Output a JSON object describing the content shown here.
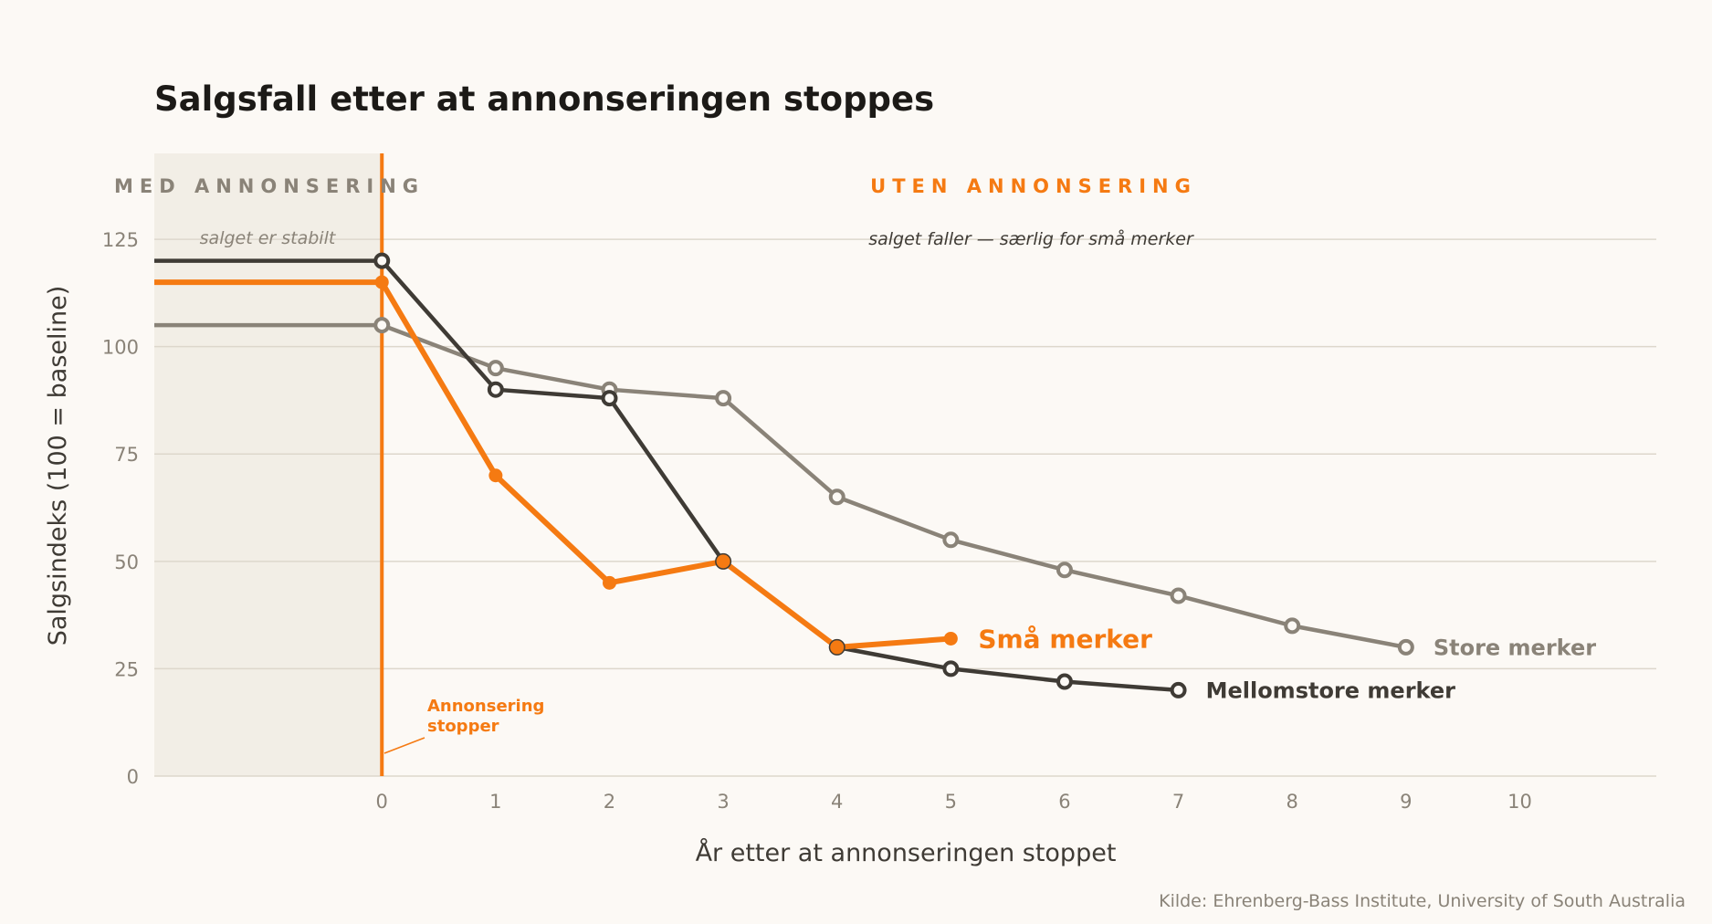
{
  "chart_data": {
    "type": "line",
    "title": "Salgsfall etter at annonseringen stoppes",
    "xlabel": "År etter at annonseringen stoppet",
    "ylabel": "Salgsindeks (100 = baseline)",
    "xlim": [
      -2,
      11.2
    ],
    "ylim": [
      0,
      145
    ],
    "x_ticks": [
      0,
      1,
      2,
      3,
      4,
      5,
      6,
      7,
      8,
      9,
      10
    ],
    "y_ticks": [
      0,
      25,
      50,
      75,
      100,
      125
    ],
    "grid": "horizontal",
    "regions": [
      {
        "label": "MED ANNONSERING",
        "note": "salget er stabilt",
        "x_range": [
          -2,
          0
        ],
        "color": "#8a8378"
      },
      {
        "label": "UTEN ANNONSERING",
        "note": "salget faller — særlig for små merker",
        "x_range": [
          0,
          11.2
        ],
        "color": "#f57a12"
      }
    ],
    "annotation": {
      "line1": "Annonsering",
      "line2": "stopper",
      "x": 0
    },
    "series": [
      {
        "name": "Store merker",
        "color": "#8a8378",
        "pre_level": 105,
        "x": [
          0,
          1,
          2,
          3,
          4,
          5,
          6,
          7,
          8,
          9
        ],
        "values": [
          105,
          95,
          90,
          88,
          65,
          55,
          48,
          42,
          35,
          30
        ],
        "marker": "hollow"
      },
      {
        "name": "Mellomstore merker",
        "color": "#3f3b35",
        "pre_level": 120,
        "x": [
          0,
          1,
          2,
          3,
          4,
          5,
          6,
          7
        ],
        "values": [
          120,
          90,
          88,
          50,
          30,
          25,
          22,
          20
        ],
        "marker": "hollow"
      },
      {
        "name": "Små merker",
        "color": "#f57a12",
        "pre_level": 115,
        "x": [
          0,
          1,
          2,
          3,
          4,
          5
        ],
        "values": [
          115,
          70,
          45,
          50,
          30,
          32
        ],
        "marker": "filled"
      }
    ],
    "source": "Kilde: Ehrenberg-Bass Institute, University of South Australia"
  }
}
